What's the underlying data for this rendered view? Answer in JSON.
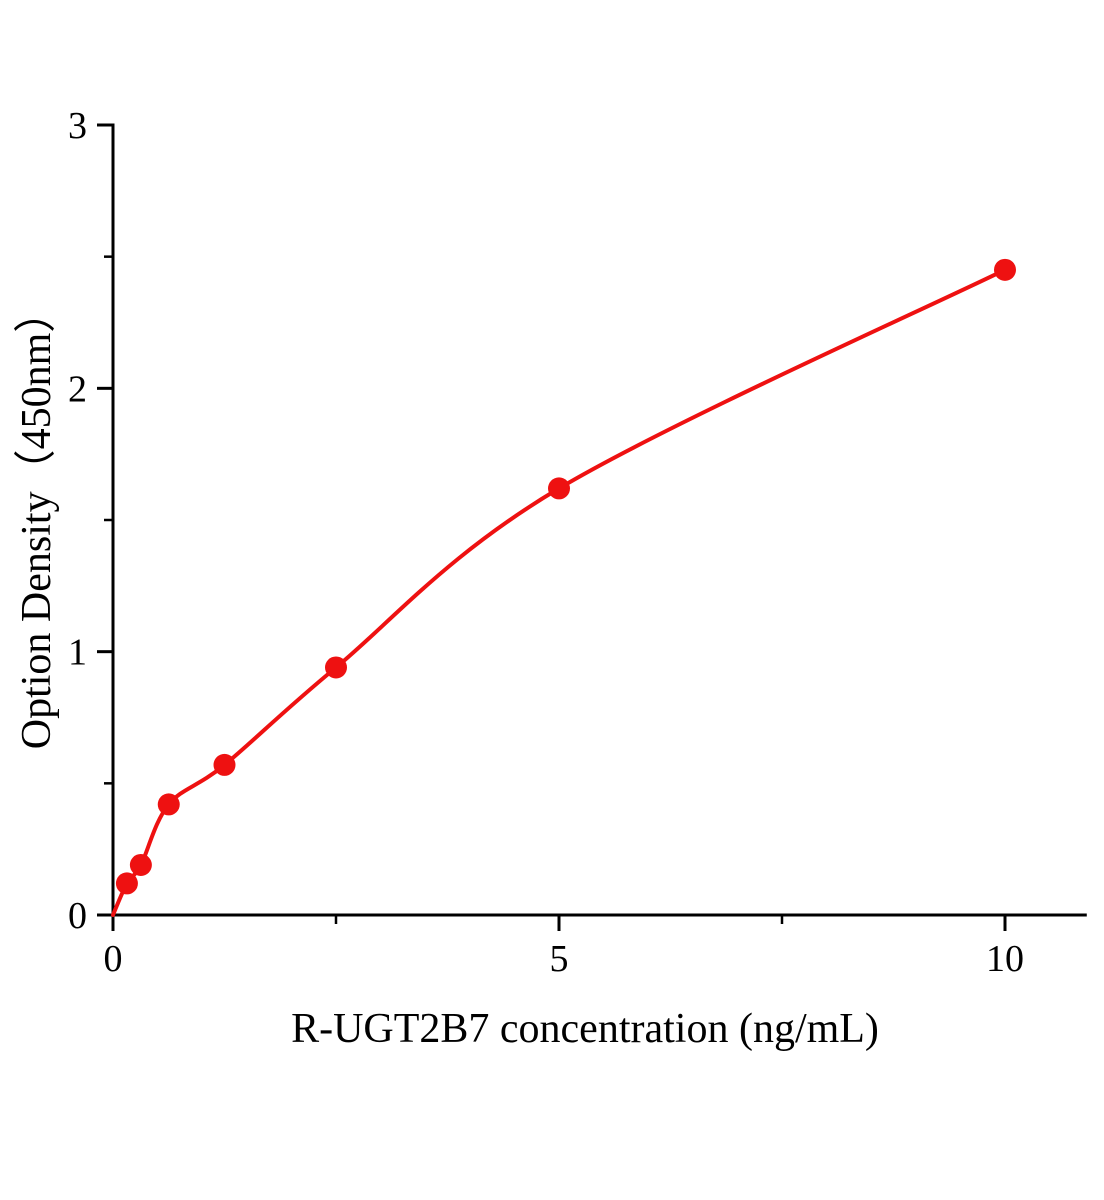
{
  "figure": {
    "background": "#ffffff",
    "description": "ELISA standard curve"
  },
  "chart_data": {
    "type": "scatter",
    "title": "",
    "xlabel": "R-UGT2B7 concentration (ng/mL)",
    "ylabel": "Option Density（450nm）",
    "x": [
      0.156,
      0.3125,
      0.625,
      1.25,
      2.5,
      5,
      10
    ],
    "y": [
      0.12,
      0.19,
      0.42,
      0.57,
      0.94,
      1.62,
      2.45
    ],
    "curve_starts_at_origin": true,
    "fit": "smooth nonlinear fit curve through data points",
    "xlim": [
      0,
      10.9
    ],
    "ylim": [
      0,
      3
    ],
    "x_major_ticks": [
      0,
      5,
      10
    ],
    "x_minor_ticks": [
      2.5,
      7.5
    ],
    "y_major_ticks": [
      0,
      1,
      2,
      3
    ],
    "y_minor_ticks": [
      0.5,
      1.5,
      2.5
    ],
    "grid": false,
    "legend": "none",
    "marker_color": "#ee1111",
    "line_color": "#ee1111",
    "axis_color": "#000000",
    "text_color": "#000000"
  }
}
